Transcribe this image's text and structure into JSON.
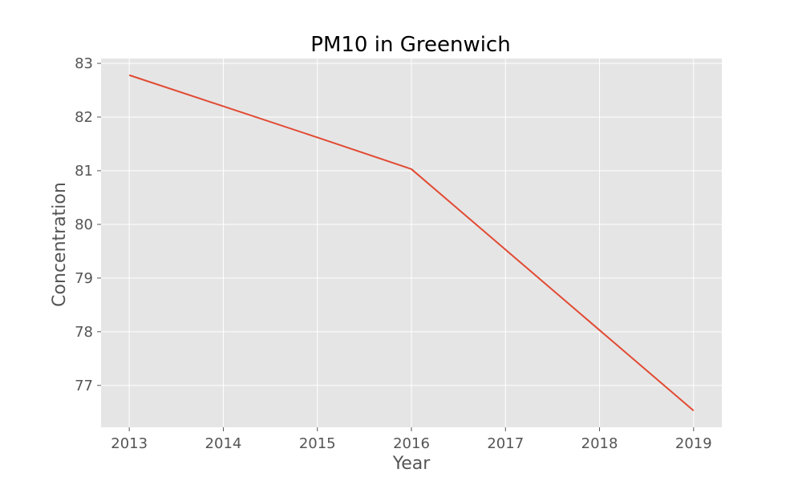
{
  "chart_data": {
    "type": "line",
    "title": "PM10 in Greenwich",
    "xlabel": "Year",
    "ylabel": "Concentration",
    "x": [
      2013,
      2014,
      2015,
      2016,
      2017,
      2018,
      2019
    ],
    "series": [
      {
        "values": [
          82.78,
          82.2,
          81.62,
          81.03,
          79.53,
          78.03,
          76.53
        ],
        "color": "#e24a33"
      }
    ],
    "xticks": [
      "2013",
      "2014",
      "2015",
      "2016",
      "2017",
      "2018",
      "2019"
    ],
    "yticks": [
      "77",
      "78",
      "79",
      "80",
      "81",
      "82",
      "83"
    ],
    "xlim": [
      2012.7,
      2019.3
    ],
    "ylim": [
      76.22,
      83.09
    ],
    "grid": true,
    "plot_background": "#e5e5e5",
    "grid_color": "#ffffff",
    "legend": false
  }
}
